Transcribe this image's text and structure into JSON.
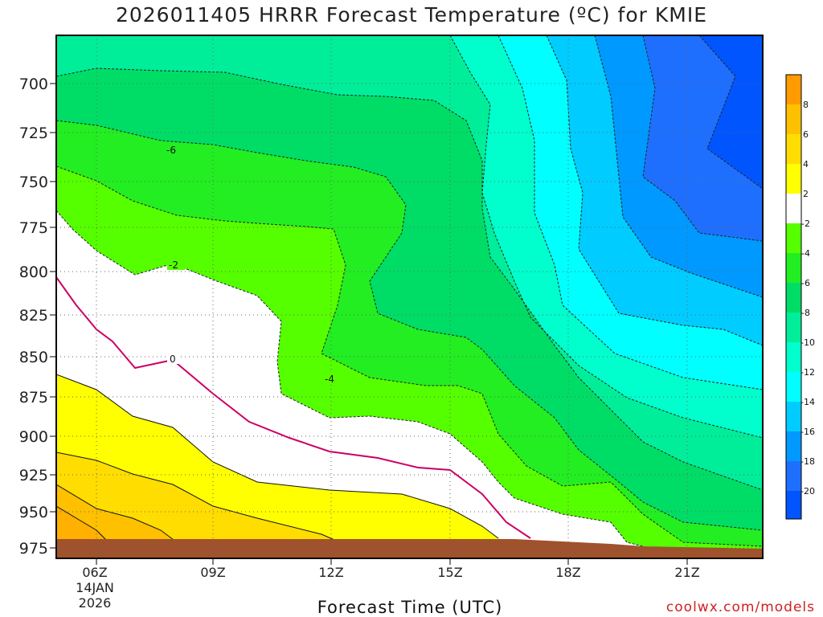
{
  "title": "2026011405 HRRR Forecast Temperature (ºC) for KMIE",
  "xlabel": "Forecast Time (UTC)",
  "credit": "coolwx.com/models",
  "chart_data": {
    "type": "heatmap",
    "title": "2026011405 HRRR Forecast Temperature (ºC) for KMIE",
    "xlabel": "Forecast Time (UTC)",
    "ylabel": "",
    "x_ticks": [
      "06Z",
      "09Z",
      "12Z",
      "15Z",
      "18Z",
      "21Z"
    ],
    "x_date_label": [
      "14JAN",
      "2026"
    ],
    "y_ticks": [
      700,
      725,
      750,
      775,
      800,
      825,
      850,
      875,
      900,
      925,
      950,
      975
    ],
    "ylim": [
      982,
      673
    ],
    "xlim": [
      5,
      23
    ],
    "grid": true,
    "colorbar_ticks": [
      8,
      6,
      4,
      2,
      -2,
      -4,
      -6,
      -8,
      -10,
      -12,
      -14,
      -16,
      -18,
      -20
    ],
    "colorbar_colors": [
      "#ff9a00",
      "#ffc000",
      "#ffdd00",
      "#ffff00",
      "#ffffff",
      "#55ff00",
      "#22ee22",
      "#00dd66",
      "#00ee99",
      "#00ffcc",
      "#00ffff",
      "#00ccff",
      "#0099ff",
      "#1f6fff",
      "#0055ff"
    ],
    "contour_labels": [
      "-6",
      "-2",
      "0",
      "-4"
    ],
    "ground_color": "#a0522d",
    "zero_line_color": "#cc0066"
  }
}
